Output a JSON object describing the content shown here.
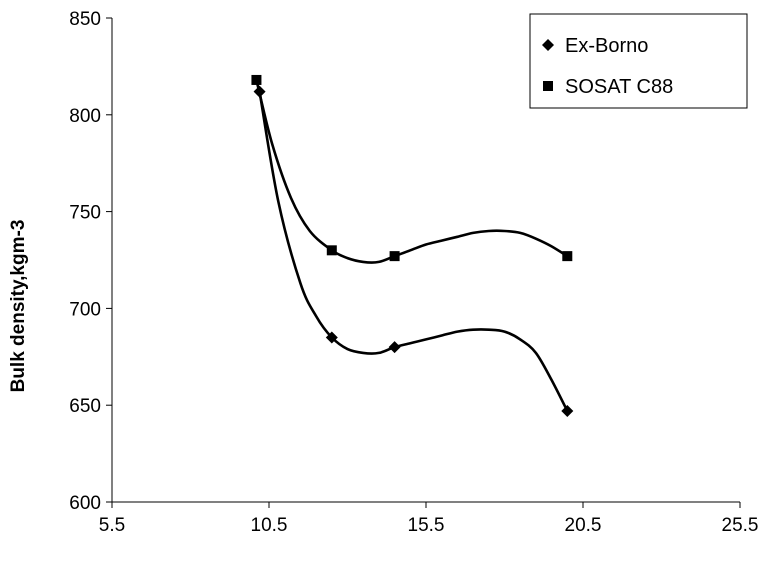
{
  "chart_data": {
    "type": "scatter",
    "title": "",
    "xlabel": "",
    "ylabel": "Bulk density,kgm-3",
    "xlim": [
      5.5,
      25.5
    ],
    "ylim": [
      600,
      850
    ],
    "x_ticks": [
      "5.5",
      "10.5",
      "15.5",
      "20.5",
      "25.5"
    ],
    "y_ticks": [
      "600",
      "650",
      "700",
      "750",
      "800",
      "850"
    ],
    "x_tick_values": [
      5.5,
      10.5,
      15.5,
      20.5,
      25.5
    ],
    "y_tick_values": [
      600,
      650,
      700,
      750,
      800,
      850
    ],
    "grid": false,
    "legend_position": "top-right",
    "smoothed_lines": true,
    "series": [
      {
        "name": "Ex-Borno",
        "marker": "diamond",
        "color": "#000000",
        "x": [
          10.2,
          12.5,
          14.5,
          20.0
        ],
        "y": [
          812,
          685,
          680,
          647
        ],
        "curve_x": [
          10.2,
          10.8,
          11.5,
          12.0,
          12.5,
          13.0,
          13.5,
          14.0,
          14.5,
          15.0,
          15.5,
          16.0,
          16.5,
          17.0,
          17.5,
          18.0,
          18.5,
          19.0,
          19.5,
          20.0
        ],
        "curve_y": [
          812,
          755,
          713,
          696,
          685,
          679,
          677,
          677,
          680,
          682,
          684,
          686,
          688,
          689,
          689,
          688,
          684,
          677,
          663,
          647
        ]
      },
      {
        "name": "SOSAT C88",
        "marker": "square",
        "color": "#000000",
        "x": [
          10.1,
          12.5,
          14.5,
          20.0
        ],
        "y": [
          818,
          730,
          727,
          727
        ],
        "curve_x": [
          10.1,
          10.6,
          11.2,
          11.8,
          12.5,
          13.0,
          13.5,
          14.0,
          14.5,
          15.0,
          15.5,
          16.0,
          16.5,
          17.0,
          17.5,
          18.0,
          18.5,
          19.0,
          19.5,
          20.0
        ],
        "curve_y": [
          818,
          785,
          757,
          740,
          730,
          726,
          724,
          724,
          727,
          730,
          733,
          735,
          737,
          739,
          740,
          740,
          739,
          736,
          732,
          727
        ]
      }
    ]
  }
}
